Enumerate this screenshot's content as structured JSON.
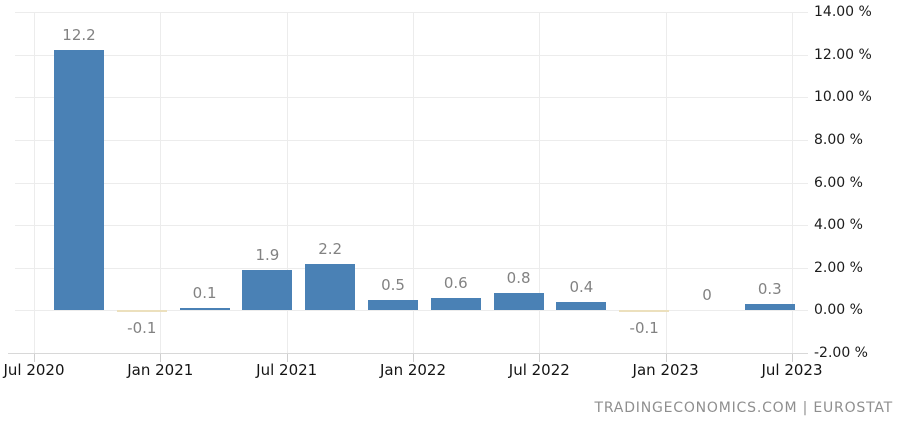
{
  "chart_data": {
    "type": "bar",
    "title": "",
    "x_tick_labels": [
      "Jul 2020",
      "Jan 2021",
      "Jul 2021",
      "Jan 2022",
      "Jul 2022",
      "Jan 2023",
      "Jul 2023"
    ],
    "y_tick_labels": [
      "14.00 %",
      "12.00 %",
      "10.00 %",
      "8.00 %",
      "6.00 %",
      "4.00 %",
      "2.00 %",
      "0.00 %",
      "-2.00 %"
    ],
    "y_tick_values": [
      14,
      12,
      10,
      8,
      6,
      4,
      2,
      0,
      -2
    ],
    "ylim": [
      -2,
      14
    ],
    "y_step": 2,
    "grid": true,
    "legend": null,
    "values": [
      12.2,
      -0.1,
      0.1,
      1.9,
      2.2,
      0.5,
      0.6,
      0.8,
      0.4,
      -0.1,
      0,
      0.3
    ],
    "bar_labels": [
      "12.2",
      "-0.1",
      "0.1",
      "1.9",
      "2.2",
      "0.5",
      "0.6",
      "0.8",
      "0.4",
      "-0.1",
      "0",
      "0.3"
    ],
    "colors": {
      "positive_bar": "#4a81b5",
      "negative_bar": "#ece0bd",
      "gridline": "#ececec",
      "axis_text": "#1c1c1c",
      "value_label_text": "#828282"
    }
  },
  "attribution": {
    "text": "TRADINGECONOMICS.COM | EUROSTAT"
  }
}
